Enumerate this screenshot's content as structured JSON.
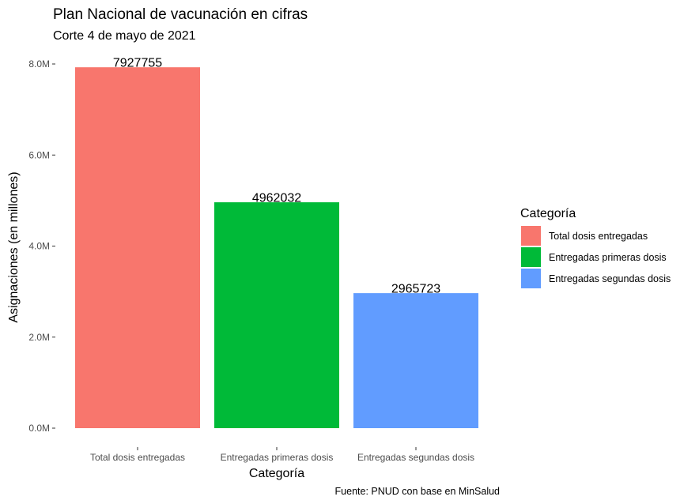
{
  "chart_data": {
    "type": "bar",
    "title": "Plan Nacional de vacunación en cifras",
    "subtitle": "Corte 4 de mayo de 2021",
    "xlabel": "Categoría",
    "ylabel": "Asignaciones (en millones)",
    "caption": "Fuente: PNUD con base en MinSalud",
    "categories": [
      "Total dosis entregadas",
      "Entregadas primeras dosis",
      "Entregadas segundas dosis"
    ],
    "values": [
      7927755,
      4962032,
      2965723
    ],
    "data_labels": [
      "7927755",
      "4962032",
      "2965723"
    ],
    "colors": [
      "#F8766D",
      "#00BA38",
      "#619CFF"
    ],
    "yticks": [
      0,
      2000000,
      4000000,
      6000000,
      8000000
    ],
    "ytick_labels": [
      "0.0M",
      "2.0M",
      "4.0M",
      "6.0M",
      "8.0M"
    ],
    "ylim": [
      0,
      8000000
    ],
    "grid": false,
    "legend": {
      "title": "Categoría",
      "position": "right",
      "entries": [
        "Total dosis entregadas",
        "Entregadas primeras dosis",
        "Entregadas segundas dosis"
      ]
    }
  }
}
